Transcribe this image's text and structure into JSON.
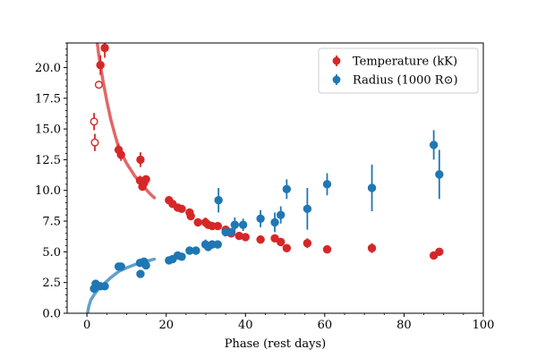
{
  "chart_data": {
    "type": "scatter",
    "title": "",
    "xlabel": "Phase (rest days)",
    "ylabel": "",
    "xlim": [
      -5,
      100
    ],
    "ylim": [
      0,
      22
    ],
    "xticks": [
      "0",
      "20",
      "40",
      "60",
      "80",
      "100"
    ],
    "yticks": [
      "0.0",
      "2.5",
      "5.0",
      "7.5",
      "10.0",
      "12.5",
      "15.0",
      "17.5",
      "20.0"
    ],
    "legend": {
      "position": "top-right",
      "entries": [
        {
          "label": "Temperature (kK)",
          "color": "#d62728"
        },
        {
          "label": "Radius (1000 R⊙)",
          "color": "#1f77b4"
        }
      ]
    },
    "series": [
      {
        "name": "Temperature (kK)",
        "color": "#d62728",
        "points": [
          {
            "x": 3.4,
            "y": 20.2,
            "err": 0.8
          },
          {
            "x": 4.5,
            "y": 21.6,
            "err": 0.8
          },
          {
            "x": 8.0,
            "y": 13.3,
            "err": 0.5
          },
          {
            "x": 8.6,
            "y": 12.9,
            "err": 0.5
          },
          {
            "x": 13.5,
            "y": 12.5,
            "err": 0.6
          },
          {
            "x": 13.4,
            "y": 10.8,
            "err": 0.4
          },
          {
            "x": 14.0,
            "y": 10.3,
            "err": 0.3
          },
          {
            "x": 14.4,
            "y": 10.6,
            "err": 0.3
          },
          {
            "x": 14.9,
            "y": 10.9,
            "err": 0.3
          },
          {
            "x": 20.7,
            "y": 9.2,
            "err": 0.2
          },
          {
            "x": 21.6,
            "y": 8.9,
            "err": 0.2
          },
          {
            "x": 22.9,
            "y": 8.6,
            "err": 0.3
          },
          {
            "x": 23.9,
            "y": 8.5,
            "err": 0.2
          },
          {
            "x": 25.9,
            "y": 8.2,
            "err": 0.2
          },
          {
            "x": 26.2,
            "y": 7.9,
            "err": 0.2
          },
          {
            "x": 28.0,
            "y": 7.4,
            "err": 0.2
          },
          {
            "x": 29.9,
            "y": 7.4,
            "err": 0.4
          },
          {
            "x": 30.6,
            "y": 7.2,
            "err": 0.3
          },
          {
            "x": 31.6,
            "y": 7.1,
            "err": 0.3
          },
          {
            "x": 33.0,
            "y": 7.1,
            "err": 0.3
          },
          {
            "x": 35.0,
            "y": 6.8,
            "err": 0.3
          },
          {
            "x": 36.4,
            "y": 6.5,
            "err": 0.2
          },
          {
            "x": 38.4,
            "y": 6.3,
            "err": 0.2
          },
          {
            "x": 40.0,
            "y": 6.2,
            "err": 0.2
          },
          {
            "x": 43.8,
            "y": 6.0,
            "err": 0.2
          },
          {
            "x": 47.4,
            "y": 6.1,
            "err": 0.3
          },
          {
            "x": 48.9,
            "y": 5.8,
            "err": 0.3
          },
          {
            "x": 50.4,
            "y": 5.3,
            "err": 0.2
          },
          {
            "x": 55.6,
            "y": 5.7,
            "err": 0.4
          },
          {
            "x": 60.6,
            "y": 5.2,
            "err": 0.2
          },
          {
            "x": 71.9,
            "y": 5.3,
            "err": 0.4
          },
          {
            "x": 87.5,
            "y": 4.7,
            "err": 0.3
          },
          {
            "x": 88.9,
            "y": 5.0,
            "err": 0.2
          }
        ],
        "open_points": [
          {
            "x": 1.8,
            "y": 15.6,
            "err": 0.7
          },
          {
            "x": 2.0,
            "y": 13.9,
            "err": 0.7
          },
          {
            "x": 3.0,
            "y": 18.6,
            "err": 0.0
          }
        ],
        "fit_curve": [
          {
            "x": 2.0,
            "y": 23.5
          },
          {
            "x": 3.0,
            "y": 21.0
          },
          {
            "x": 4.0,
            "y": 19.0
          },
          {
            "x": 5.0,
            "y": 17.3
          },
          {
            "x": 6.0,
            "y": 15.8
          },
          {
            "x": 7.0,
            "y": 14.6
          },
          {
            "x": 8.0,
            "y": 13.5
          },
          {
            "x": 10.0,
            "y": 12.2
          },
          {
            "x": 12.0,
            "y": 11.2
          },
          {
            "x": 14.0,
            "y": 10.4
          },
          {
            "x": 16.0,
            "y": 9.7
          },
          {
            "x": 17.0,
            "y": 9.4
          }
        ]
      },
      {
        "name": "Radius (1000 R⊙)",
        "color": "#1f77b4",
        "points": [
          {
            "x": 1.8,
            "y": 2.0,
            "err": 0.2
          },
          {
            "x": 2.2,
            "y": 2.4,
            "err": 0.2
          },
          {
            "x": 3.4,
            "y": 2.2,
            "err": 0.2
          },
          {
            "x": 4.5,
            "y": 2.2,
            "err": 0.2
          },
          {
            "x": 8.0,
            "y": 3.8,
            "err": 0.2
          },
          {
            "x": 8.6,
            "y": 3.8,
            "err": 0.2
          },
          {
            "x": 13.4,
            "y": 4.1,
            "err": 0.2
          },
          {
            "x": 13.5,
            "y": 3.2,
            "err": 0.3
          },
          {
            "x": 14.4,
            "y": 4.2,
            "err": 0.2
          },
          {
            "x": 14.9,
            "y": 3.9,
            "err": 0.2
          },
          {
            "x": 20.7,
            "y": 4.3,
            "err": 0.2
          },
          {
            "x": 21.6,
            "y": 4.4,
            "err": 0.2
          },
          {
            "x": 22.9,
            "y": 4.7,
            "err": 0.2
          },
          {
            "x": 23.9,
            "y": 4.6,
            "err": 0.2
          },
          {
            "x": 25.9,
            "y": 5.1,
            "err": 0.3
          },
          {
            "x": 27.5,
            "y": 5.1,
            "err": 0.3
          },
          {
            "x": 29.9,
            "y": 5.6,
            "err": 0.4
          },
          {
            "x": 30.6,
            "y": 5.4,
            "err": 0.3
          },
          {
            "x": 31.6,
            "y": 5.6,
            "err": 0.3
          },
          {
            "x": 33.0,
            "y": 5.6,
            "err": 0.3
          },
          {
            "x": 33.2,
            "y": 9.2,
            "err": 1.0
          },
          {
            "x": 35.0,
            "y": 6.6,
            "err": 0.3
          },
          {
            "x": 36.4,
            "y": 6.6,
            "err": 0.3
          },
          {
            "x": 37.3,
            "y": 7.2,
            "err": 0.6
          },
          {
            "x": 39.4,
            "y": 7.2,
            "err": 0.5
          },
          {
            "x": 43.8,
            "y": 7.7,
            "err": 0.7
          },
          {
            "x": 47.4,
            "y": 7.4,
            "err": 0.8
          },
          {
            "x": 48.9,
            "y": 8.0,
            "err": 0.7
          },
          {
            "x": 50.4,
            "y": 10.1,
            "err": 0.8
          },
          {
            "x": 55.6,
            "y": 8.5,
            "err": 1.7
          },
          {
            "x": 60.6,
            "y": 10.5,
            "err": 0.9
          },
          {
            "x": 71.9,
            "y": 10.2,
            "err": 1.9
          },
          {
            "x": 87.5,
            "y": 13.7,
            "err": 1.2
          },
          {
            "x": 88.9,
            "y": 11.3,
            "err": 2.0
          }
        ],
        "fit_curve": [
          {
            "x": 0.2,
            "y": 0.1
          },
          {
            "x": 0.5,
            "y": 0.6
          },
          {
            "x": 1.0,
            "y": 1.1
          },
          {
            "x": 2.0,
            "y": 1.6
          },
          {
            "x": 3.0,
            "y": 2.0
          },
          {
            "x": 4.0,
            "y": 2.3
          },
          {
            "x": 6.0,
            "y": 2.9
          },
          {
            "x": 8.0,
            "y": 3.4
          },
          {
            "x": 10.0,
            "y": 3.7
          },
          {
            "x": 12.0,
            "y": 3.95
          },
          {
            "x": 14.0,
            "y": 4.15
          },
          {
            "x": 17.0,
            "y": 4.4
          }
        ]
      }
    ]
  }
}
